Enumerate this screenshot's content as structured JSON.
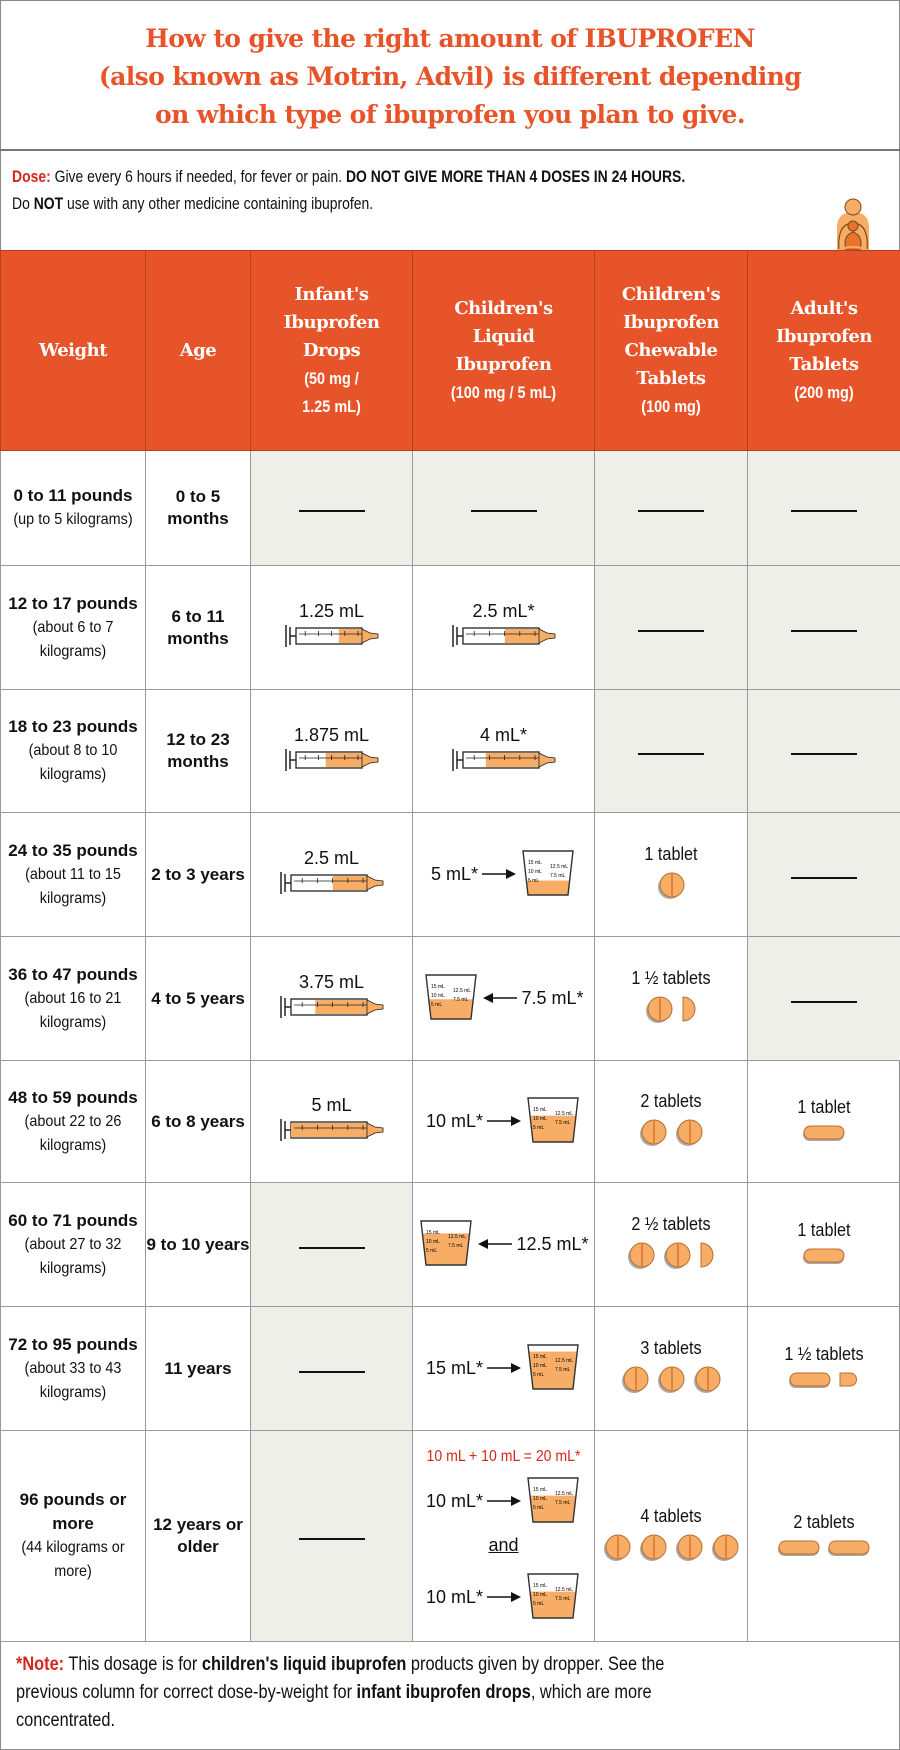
{
  "title": {
    "lines": [
      "How to give the right amount of IBUPROFEN",
      "(also known as Motrin, Advil) is different depending",
      "on which type of ibuprofen you plan to give."
    ]
  },
  "dose": {
    "label": "Dose:",
    "text1": " Give every 6 hours if needed, for fever or pain. ",
    "warning": "DO NOT GIVE MORE THAN 4 DOSES IN 24 HOURS.",
    "text2a": "Do ",
    "text2b": "NOT",
    "text2c": " use with any other medicine containing ibuprofen.",
    "logo_icon": "parent-child-logo-icon"
  },
  "colors": {
    "accent": "#e8542a",
    "red": "#d4281c",
    "fill": "#f7ad66",
    "gray_cell": "#efefe9"
  },
  "headers": [
    {
      "title": [
        "Weight"
      ],
      "sub": []
    },
    {
      "title": [
        "Age"
      ],
      "sub": []
    },
    {
      "title": [
        "Infant's",
        "Ibuprofen",
        "Drops"
      ],
      "sub": [
        "(50 mg /",
        "1.25 mL)"
      ]
    },
    {
      "title": [
        "Children's",
        "Liquid",
        "Ibuprofen"
      ],
      "sub": [
        "(100 mg / 5 mL)"
      ]
    },
    {
      "title": [
        "Children's",
        "Ibuprofen",
        "Chewable",
        "Tablets"
      ],
      "sub": [
        "(100 mg)"
      ]
    },
    {
      "title": [
        "Adult's",
        "Ibuprofen",
        "Tablets"
      ],
      "sub": [
        "(200 mg)"
      ]
    }
  ],
  "cup_marks": [
    "15 mL",
    "10 mL",
    "5 mL",
    "12.5 mL",
    "7.5 mL"
  ],
  "rows": [
    {
      "weight": "0 to 11 pounds",
      "metric": "(up to 5 kilograms)",
      "age": "0 to 5 months",
      "drops": {
        "type": "none"
      },
      "liquid": {
        "type": "none"
      },
      "chewable": {
        "type": "none"
      },
      "adult": {
        "type": "none"
      }
    },
    {
      "weight": "12 to 17 pounds",
      "metric": "(about 6 to 7 kilograms)",
      "age": "6 to 11 months",
      "drops": {
        "type": "syringe",
        "label": "1.25 mL",
        "fill": 0.35,
        "kind": "small"
      },
      "liquid": {
        "type": "syringe",
        "label": "2.5 mL*",
        "fill": 0.45,
        "kind": "large"
      },
      "chewable": {
        "type": "none"
      },
      "adult": {
        "type": "none"
      }
    },
    {
      "weight": "18 to 23 pounds",
      "metric": "(about 8 to 10 kilograms)",
      "age": "12 to 23 months",
      "drops": {
        "type": "syringe",
        "label": "1.875 mL",
        "fill": 0.55,
        "kind": "small"
      },
      "liquid": {
        "type": "syringe",
        "label": "4 mL*",
        "fill": 0.7,
        "kind": "large"
      },
      "chewable": {
        "type": "none"
      },
      "adult": {
        "type": "none"
      }
    },
    {
      "weight": "24 to 35 pounds",
      "metric": "(about 11 to 15 kilograms)",
      "age": "2 to 3 years",
      "drops": {
        "type": "syringe",
        "label": "2.5 mL",
        "fill": 0.45,
        "kind": "large"
      },
      "liquid": {
        "type": "cup",
        "label": "5 mL*",
        "fill": 0.33,
        "arrow": "right"
      },
      "chewable": {
        "type": "tablets",
        "label": "1 tablet",
        "pills": [
          "round"
        ]
      },
      "adult": {
        "type": "none"
      }
    },
    {
      "weight": "36 to 47 pounds",
      "metric": "(about 16 to 21 kilograms)",
      "age": "4 to 5 years",
      "drops": {
        "type": "syringe",
        "label": "3.75 mL",
        "fill": 0.68,
        "kind": "large"
      },
      "liquid": {
        "type": "cup",
        "label": "7.5 mL*",
        "fill": 0.45,
        "arrow": "left"
      },
      "chewable": {
        "type": "tablets",
        "label": "1 ½ tablets",
        "pills": [
          "round",
          "half"
        ]
      },
      "adult": {
        "type": "none"
      }
    },
    {
      "weight": "48 to 59 pounds",
      "metric": "(about 22 to 26 kilograms)",
      "age": "6 to 8 years",
      "drops": {
        "type": "syringe",
        "label": "5 mL",
        "fill": 1.0,
        "kind": "large"
      },
      "liquid": {
        "type": "cup",
        "label": "10 mL*",
        "fill": 0.6,
        "arrow": "right"
      },
      "chewable": {
        "type": "tablets",
        "label": "2 tablets",
        "pills": [
          "round",
          "round"
        ]
      },
      "adult": {
        "type": "tablets",
        "label": "1 tablet",
        "pills": [
          "oval"
        ]
      }
    },
    {
      "weight": "60 to 71 pounds",
      "metric": "(about 27 to 32 kilograms)",
      "age": "9 to 10 years",
      "drops": {
        "type": "none"
      },
      "liquid": {
        "type": "cup",
        "label": "12.5 mL*",
        "fill": 0.72,
        "arrow": "left"
      },
      "chewable": {
        "type": "tablets",
        "label": "2 ½ tablets",
        "pills": [
          "round",
          "round",
          "half"
        ]
      },
      "adult": {
        "type": "tablets",
        "label": "1 tablet",
        "pills": [
          "oval"
        ]
      }
    },
    {
      "weight": "72 to 95 pounds",
      "metric": "(about 33 to 43 kilograms)",
      "age": "11 years",
      "drops": {
        "type": "none"
      },
      "liquid": {
        "type": "cup",
        "label": "15 mL*",
        "fill": 0.85,
        "arrow": "right"
      },
      "chewable": {
        "type": "tablets",
        "label": "3 tablets",
        "pills": [
          "round",
          "round",
          "round"
        ]
      },
      "adult": {
        "type": "tablets",
        "label": "1 ½ tablets",
        "pills": [
          "oval",
          "ovalhalf"
        ]
      }
    },
    {
      "weight": "96 pounds or more",
      "metric": "(44 kilograms or more)",
      "age": "12 years or older",
      "drops": {
        "type": "none"
      },
      "liquid": {
        "type": "double",
        "total": "10 mL + 10 mL = 20 mL*",
        "label": "10 mL*",
        "and": "and",
        "fill": 0.6
      },
      "chewable": {
        "type": "tablets",
        "label": "4 tablets",
        "pills": [
          "round",
          "round",
          "round",
          "round"
        ]
      },
      "adult": {
        "type": "tablets",
        "label": "2 tablets",
        "pills": [
          "oval",
          "oval"
        ]
      }
    }
  ],
  "note": {
    "label": "*Note:",
    "t1": " This dosage is for ",
    "b1": "children's liquid ibuprofen",
    "t2": " products given by dropper. See the",
    "t3": "previous column for correct dose-by-weight for ",
    "b2": "infant ibuprofen drops",
    "t4": ", which are more",
    "t5": "concentrated."
  }
}
